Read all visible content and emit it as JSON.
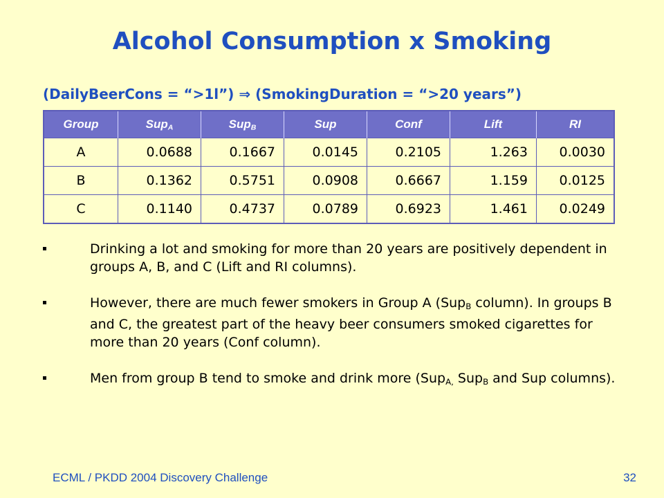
{
  "slide": {
    "title": "Alcohol Consumption x Smoking",
    "rule": "(DailyBeerCons = “>1l”) ⇒ (SmokingDuration = “>20 years”)"
  },
  "table": {
    "headers": [
      "Group",
      "Sup",
      "Sup",
      "Sup",
      "Conf",
      "Lift",
      "RI"
    ],
    "header_subscripts": [
      "",
      "A",
      "B",
      "",
      "",
      "",
      ""
    ],
    "rows": [
      [
        "A",
        "0.0688",
        "0.1667",
        "0.0145",
        "0.2105",
        "1.263",
        "0.0030"
      ],
      [
        "B",
        "0.1362",
        "0.5751",
        "0.0908",
        "0.6667",
        "1.159",
        "0.0125"
      ],
      [
        "C",
        "0.1140",
        "0.4737",
        "0.0789",
        "0.6923",
        "1.461",
        "0.0249"
      ]
    ]
  },
  "bullets": {
    "b1": {
      "text": "Drinking a lot and smoking for more than 20 years are positively dependent in groups A, B, and C (Lift and RI columns)."
    },
    "b2": {
      "pre": "However, there are much fewer smokers in Group A (Sup",
      "sub": "B",
      "post": " column). In groups B and C, the greatest part of the heavy beer consumers smoked cigarettes for more than 20 years (Conf column)."
    },
    "b3": {
      "pre": "Men from group B tend to smoke and drink more (Sup",
      "sub1": "A,",
      "mid": " Sup",
      "sub2": "B",
      "post": " and Sup columns)."
    }
  },
  "footer": {
    "left": "ECML / PKDD 2004 Discovery Challenge",
    "page_number": "32"
  },
  "colors": {
    "background": "#ffffcc",
    "title": "#1f4fbf",
    "header_fill": "#6f6fc8",
    "table_border": "#5c5cb8"
  }
}
